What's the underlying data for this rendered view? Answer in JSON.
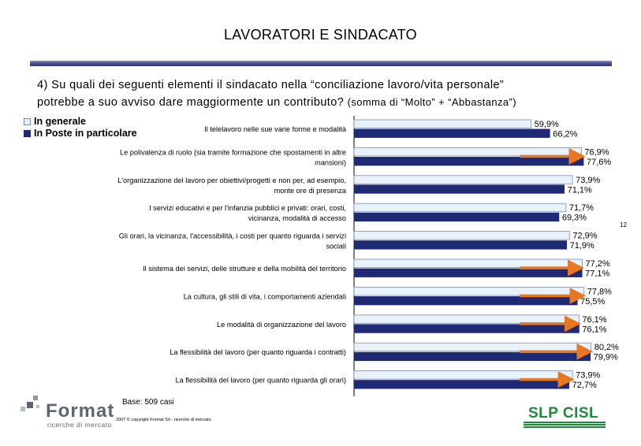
{
  "header": {
    "title": "LAVORATORI E SINDACATO",
    "question_main_line1": "4) Su quali dei seguenti elementi il sindacato nella “conciliazione lavoro/vita personale”",
    "question_main_line2": "potrebbe a suo avviso dare maggiormente un contributo?",
    "question_note": "(somma di “Molto” + “Abbastanza”)"
  },
  "legend": {
    "series_a": "In generale",
    "series_b": "In Poste in particolare"
  },
  "footer": {
    "base": "Base: 509 casi",
    "copyright": "2007 © copyright Format Srl - ricerche di mercato",
    "page_number": "12"
  },
  "logos": {
    "format_word": "Format",
    "format_sub": "ricerche di mercato",
    "slp_word": "SLP CISL"
  },
  "colors": {
    "series_a": "#e9f2fb",
    "series_b": "#1f2a74",
    "arrow": "#e87722"
  },
  "chart_data": {
    "type": "bar",
    "orientation": "horizontal",
    "categories": [
      [
        "Il telelavoro nelle sue varie forme e modalità"
      ],
      [
        "Le polivalenza di ruolo (sia tramite formazione che spostamenti in altre",
        "mansioni)"
      ],
      [
        "L'organizzazione del lavoro per obiettivi/progetti e non per, ad esempio,",
        "monte ore di presenza"
      ],
      [
        "I servizi educativi e per l'infanzia pubblici e privati: orari, costi,",
        "vicinanza, modalità di accesso"
      ],
      [
        "Gli orari, la vicinanza, l'accessibilità, i costi per quanto riguarda i servizi",
        "sociali"
      ],
      [
        "Il sistema dei servizi, delle strutture e della mobilità del territorio"
      ],
      [
        "La cultura, gli stili di vita, i comportamenti aziendali"
      ],
      [
        "Le modalità di organizzazione del lavoro"
      ],
      [
        "La flessibilità del lavoro (per quanto riguarda i contratti)"
      ],
      [
        "La flessibilità del lavoro (per quanto riguarda gli orari)"
      ]
    ],
    "series": [
      {
        "name": "In generale",
        "values": [
          59.9,
          76.9,
          73.9,
          71.7,
          72.9,
          77.2,
          77.8,
          76.1,
          80.2,
          73.9
        ],
        "labels": [
          "59,9%",
          "76,9%",
          "73,9%",
          "71,7%",
          "72,9%",
          "77,2%",
          "77,8%",
          "76,1%",
          "80,2%",
          "73,9%"
        ]
      },
      {
        "name": "In Poste in particolare",
        "values": [
          66.2,
          77.6,
          71.1,
          69.3,
          71.9,
          77.1,
          75.5,
          76.1,
          79.9,
          72.7
        ],
        "labels": [
          "66,2%",
          "77,6%",
          "71,1%",
          "69,3%",
          "71,9%",
          "77,1%",
          "75,5%",
          "76,1%",
          "79,9%",
          "72,7%"
        ]
      }
    ],
    "arrows": [
      false,
      true,
      false,
      false,
      false,
      true,
      true,
      true,
      true,
      true
    ],
    "xlim": [
      0,
      100
    ],
    "grid": false,
    "legend_position": "top-left"
  }
}
